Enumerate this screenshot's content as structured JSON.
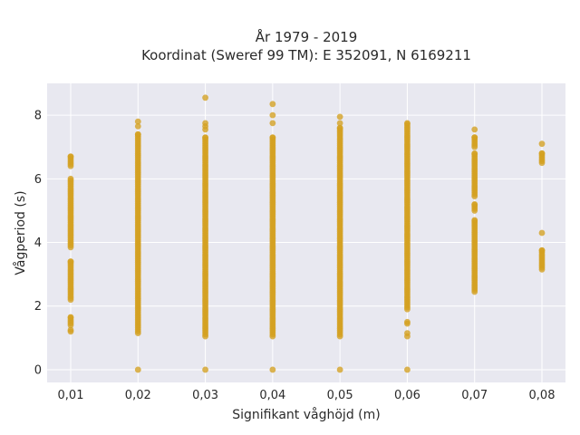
{
  "chart_data": {
    "type": "scatter",
    "title_lines": [
      "År 1979 - 2019",
      "Koordinat (Sweref 99 TM): E 352091, N 6169211"
    ],
    "xlabel": "Signifikant våghöjd (m)",
    "ylabel": "Vågperiod (s)",
    "x_categories": [
      "0,01",
      "0,02",
      "0,03",
      "0,04",
      "0,05",
      "0,06",
      "0,07",
      "0,08"
    ],
    "x_values": [
      0.01,
      0.02,
      0.03,
      0.04,
      0.05,
      0.06,
      0.07,
      0.08
    ],
    "y_ticks": [
      0,
      2,
      4,
      6,
      8
    ],
    "ylim": [
      -0.4,
      9.0
    ],
    "xlim": [
      0.0065,
      0.0835
    ],
    "grid": true,
    "marker_color": "#D4A020",
    "background_color": "#E8E8F0",
    "series": [
      {
        "x": 0.01,
        "ranges": [
          [
            1.2,
            1.25
          ],
          [
            1.4,
            1.65
          ],
          [
            2.2,
            3.4
          ],
          [
            3.85,
            6.0
          ],
          [
            6.4,
            6.7
          ]
        ],
        "points": []
      },
      {
        "x": 0.02,
        "ranges": [
          [
            1.15,
            7.4
          ]
        ],
        "points": [
          0.0,
          7.65,
          7.8
        ]
      },
      {
        "x": 0.03,
        "ranges": [
          [
            1.05,
            7.3
          ]
        ],
        "points": [
          0.0,
          7.55,
          7.65,
          7.75,
          8.55
        ]
      },
      {
        "x": 0.04,
        "ranges": [
          [
            1.05,
            7.3
          ]
        ],
        "points": [
          0.0,
          7.75,
          8.0,
          8.35
        ]
      },
      {
        "x": 0.05,
        "ranges": [
          [
            1.05,
            7.6
          ]
        ],
        "points": [
          0.0,
          7.75,
          7.95
        ]
      },
      {
        "x": 0.06,
        "ranges": [
          [
            1.9,
            7.75
          ]
        ],
        "points": [
          0.0,
          1.05,
          1.15,
          1.45,
          1.5
        ]
      },
      {
        "x": 0.07,
        "ranges": [
          [
            2.45,
            4.7
          ],
          [
            5.0,
            5.2
          ],
          [
            5.45,
            6.8
          ],
          [
            7.0,
            7.3
          ]
        ],
        "points": [
          7.55
        ]
      },
      {
        "x": 0.08,
        "ranges": [
          [
            3.15,
            3.75
          ],
          [
            6.5,
            6.8
          ]
        ],
        "points": [
          4.3,
          7.1
        ]
      }
    ]
  }
}
